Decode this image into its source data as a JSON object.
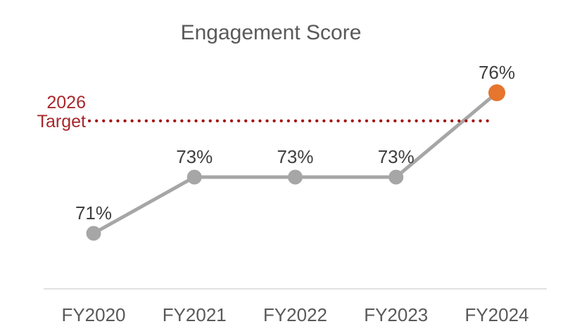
{
  "title": "Engagement Score",
  "target": {
    "label_line1": "2026",
    "label_line2": "Target",
    "value": 75
  },
  "colors": {
    "title_text": "#595959",
    "value_label_text": "#3f3f3f",
    "axis_label_text": "#595959",
    "trend_line": "#a6a6a6",
    "marker": "#a6a6a6",
    "highlight_marker": "#e6752e",
    "target_dotted_line": "#a31115",
    "target_label_text": "#a8282b",
    "axis_line": "#d9d9d9"
  },
  "chart_data": {
    "type": "line",
    "title": "Engagement Score",
    "categories": [
      "FY2020",
      "FY2021",
      "FY2022",
      "FY2023",
      "FY2024"
    ],
    "series": [
      {
        "name": "Engagement Score",
        "values": [
          71,
          73,
          73,
          73,
          76
        ]
      }
    ],
    "labels": [
      "71%",
      "73%",
      "73%",
      "73%",
      "76%"
    ],
    "highlight_index": 4,
    "xlabel": "",
    "ylabel": "",
    "ylim": [
      69,
      78
    ],
    "grid": false,
    "legend": "none",
    "annotations": [
      {
        "text": "2026 Target",
        "value": 75,
        "style": "dotted-horizontal-line"
      }
    ]
  }
}
